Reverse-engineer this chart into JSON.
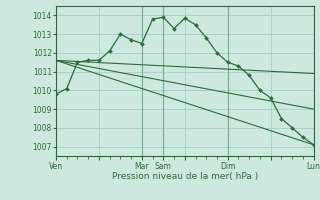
{
  "bg_color": "#cce8df",
  "grid_color": "#aad4c8",
  "line_color": "#2d6b3c",
  "vline_color": "#7aaa96",
  "xlabel": "Pression niveau de la mer( hPa )",
  "ylim": [
    1006.5,
    1014.5
  ],
  "yticks": [
    1007,
    1008,
    1009,
    1010,
    1011,
    1012,
    1013,
    1014
  ],
  "xtick_labels": [
    "Ven",
    "",
    "Mar",
    "Sam",
    "",
    "Dim",
    "",
    "Lun"
  ],
  "xtick_positions": [
    0,
    12,
    24,
    30,
    36,
    48,
    60,
    72
  ],
  "vlines": [
    0,
    24,
    30,
    48,
    72
  ],
  "series1": {
    "x": [
      0,
      3,
      6,
      9,
      12,
      15,
      18,
      21,
      24,
      27,
      30,
      33,
      36,
      39,
      42,
      45,
      48,
      51,
      54,
      57,
      60,
      63,
      66,
      69,
      72
    ],
    "y": [
      1009.8,
      1010.1,
      1011.5,
      1011.6,
      1011.6,
      1012.1,
      1013.0,
      1012.7,
      1012.5,
      1013.8,
      1013.9,
      1013.3,
      1013.85,
      1013.5,
      1012.8,
      1012.0,
      1011.5,
      1011.3,
      1010.8,
      1010.0,
      1009.6,
      1008.5,
      1008.0,
      1007.5,
      1007.1
    ]
  },
  "series2": {
    "x": [
      0,
      72
    ],
    "y": [
      1011.6,
      1010.9
    ]
  },
  "series3": {
    "x": [
      0,
      72
    ],
    "y": [
      1011.6,
      1009.0
    ]
  },
  "series4": {
    "x": [
      0,
      72
    ],
    "y": [
      1011.6,
      1007.1
    ]
  }
}
